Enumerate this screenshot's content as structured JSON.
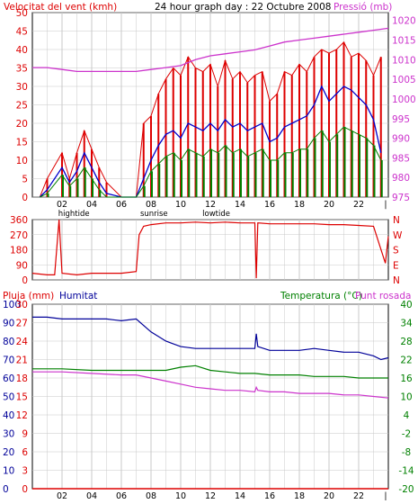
{
  "header": {
    "left_title": "Velocitat del vent (kmh)",
    "center_title": "24 hour graph day : 22 Octubre 2008",
    "right_title": "Pressió (mb)"
  },
  "x_axis": {
    "hour_ticks": [
      "02",
      "04",
      "06",
      "08",
      "10",
      "12",
      "14",
      "16",
      "18",
      "20",
      "22"
    ],
    "hightide": "hightide",
    "sunrise": "sunrise",
    "lowtide": "lowtide"
  },
  "panel3_titles": {
    "pluja": "Pluja (mm)",
    "humitat": "Humitat",
    "temperatura": "Temperatura (°C)",
    "punt_rosada": "Punt rosada"
  },
  "colors": {
    "wind_avg": "#0000cc",
    "wind_gust": "#dd0000",
    "wind_speed": "#008000",
    "pressure": "#cc33cc",
    "direction": "#dd0000",
    "humidity": "#000099",
    "temperature": "#008000",
    "dewpoint": "#cc33cc",
    "rain": "#dd0000",
    "grid": "#c8c8c8",
    "frame": "#000000"
  },
  "chart_data": [
    {
      "type": "line",
      "title": "Velocitat del vent (kmh) / Pressió (mb)",
      "x_range_hours": [
        0,
        24
      ],
      "ylim_left": [
        0,
        50
      ],
      "yticks_left": [
        "0",
        "5",
        "10",
        "15",
        "20",
        "25",
        "30",
        "35",
        "40",
        "45",
        "50"
      ],
      "ylim_right": [
        975,
        1022
      ],
      "yticks_right": [
        "975",
        "980",
        "985",
        "990",
        "995",
        "1000",
        "1005",
        "1010",
        "1015",
        "1020"
      ],
      "series": [
        {
          "role": "gust",
          "x": [
            0.5,
            1,
            2,
            2.5,
            3,
            3.5,
            4,
            4.5,
            5,
            6,
            7,
            7.5,
            8,
            8.5,
            9,
            9.5,
            10,
            10.5,
            11,
            11.5,
            12,
            12.5,
            13,
            13.5,
            14,
            14.5,
            15,
            15.5,
            16,
            16.5,
            17,
            17.5,
            18,
            18.5,
            19,
            19.5,
            20,
            20.5,
            21,
            21.5,
            22,
            22.5,
            23,
            23.5
          ],
          "y": [
            0,
            5,
            12,
            5,
            12,
            18,
            13,
            8,
            4,
            0,
            0,
            20,
            22,
            28,
            32,
            35,
            33,
            38,
            35,
            34,
            36,
            30,
            37,
            32,
            34,
            31,
            33,
            34,
            26,
            28,
            34,
            33,
            36,
            34,
            38,
            40,
            39,
            40,
            42,
            38,
            39,
            37,
            33,
            38
          ]
        },
        {
          "role": "average",
          "x": [
            0.5,
            1,
            2,
            2.5,
            3,
            3.5,
            4,
            4.5,
            5,
            6,
            7,
            7.5,
            8,
            8.5,
            9,
            9.5,
            10,
            10.5,
            11,
            11.5,
            12,
            12.5,
            13,
            13.5,
            14,
            14.5,
            15,
            15.5,
            16,
            16.5,
            17,
            17.5,
            18,
            18.5,
            19,
            19.5,
            20,
            20.5,
            21,
            21.5,
            22,
            22.5,
            23,
            23.5
          ],
          "y": [
            0,
            2,
            8,
            4,
            7,
            12,
            8,
            4,
            1,
            0,
            0,
            5,
            10,
            14,
            17,
            18,
            16,
            20,
            19,
            18,
            20,
            18,
            21,
            19,
            20,
            18,
            19,
            20,
            15,
            16,
            19,
            20,
            21,
            22,
            25,
            30,
            26,
            28,
            30,
            29,
            27,
            25,
            21,
            12
          ]
        },
        {
          "role": "speed",
          "x": [
            0.5,
            1,
            2,
            2.5,
            3,
            3.5,
            4,
            4.5,
            5,
            6,
            7,
            7.5,
            8,
            8.5,
            9,
            9.5,
            10,
            10.5,
            11,
            11.5,
            12,
            12.5,
            13,
            13.5,
            14,
            14.5,
            15,
            15.5,
            16,
            16.5,
            17,
            17.5,
            18,
            18.5,
            19,
            19.5,
            20,
            20.5,
            21,
            21.5,
            22,
            22.5,
            23,
            23.5
          ],
          "y": [
            0,
            1,
            6,
            3,
            5,
            8,
            5,
            2,
            0,
            0,
            0,
            3,
            7,
            9,
            11,
            12,
            10,
            13,
            12,
            11,
            13,
            12,
            14,
            12,
            13,
            11,
            12,
            13,
            10,
            10,
            12,
            12,
            13,
            13,
            16,
            18,
            15,
            17,
            19,
            18,
            17,
            16,
            14,
            10
          ]
        },
        {
          "role": "pressure",
          "x": [
            0,
            1,
            2,
            3,
            4,
            5,
            6,
            7,
            8,
            9,
            10,
            11,
            12,
            13,
            14,
            15,
            16,
            17,
            18,
            19,
            20,
            21,
            22,
            23,
            24
          ],
          "y": [
            1008,
            1008,
            1007.5,
            1007,
            1007,
            1007,
            1007,
            1007,
            1007.5,
            1008,
            1008.5,
            1010,
            1011,
            1011.5,
            1012,
            1012.5,
            1013.5,
            1014.5,
            1015,
            1015.5,
            1016,
            1016.5,
            1017,
            1017.5,
            1018
          ]
        }
      ]
    },
    {
      "type": "line",
      "title": "Direcció del vent",
      "x_range_hours": [
        0,
        24
      ],
      "ylim": [
        0,
        360
      ],
      "yticks": [
        "0",
        "90",
        "180",
        "270",
        "360"
      ],
      "right_labels": [
        "N",
        "W",
        "S",
        "E",
        "N"
      ],
      "series": [
        {
          "role": "direction",
          "x": [
            0,
            1,
            1.5,
            1.8,
            2,
            3,
            4,
            5,
            6,
            7,
            7.2,
            7.5,
            8,
            9,
            10,
            11,
            12,
            13,
            14,
            15,
            15.1,
            15.2,
            16,
            17,
            18,
            19,
            20,
            21,
            22,
            23,
            23.8,
            24
          ],
          "y": [
            40,
            30,
            30,
            360,
            40,
            30,
            40,
            40,
            40,
            50,
            270,
            320,
            330,
            340,
            340,
            345,
            340,
            345,
            340,
            340,
            10,
            340,
            335,
            335,
            335,
            335,
            330,
            330,
            325,
            320,
            100,
            260
          ]
        }
      ]
    },
    {
      "type": "line",
      "title": "Pluja (mm) / Humitat / Temperatura (°C) / Punt rosada",
      "x_range_hours": [
        0,
        24
      ],
      "ylim_left_rain": [
        0,
        30
      ],
      "yticks_left_rain": [
        "0",
        "3",
        "6",
        "9",
        "12",
        "15",
        "18",
        "21",
        "24",
        "27",
        "30"
      ],
      "ylim_left_humidity": [
        0,
        100
      ],
      "yticks_left_humidity": [
        "0",
        "10",
        "20",
        "30",
        "40",
        "50",
        "60",
        "70",
        "80",
        "90",
        "100"
      ],
      "ylim_right_temp": [
        -20,
        40
      ],
      "yticks_right_temp": [
        "-20",
        "-14",
        "-8",
        "-2",
        "4",
        "10",
        "16",
        "22",
        "28",
        "34",
        "40"
      ],
      "series": [
        {
          "role": "humidity",
          "x": [
            0,
            1,
            2,
            3,
            4,
            5,
            6,
            7,
            8,
            9,
            10,
            11,
            12,
            13,
            14,
            15,
            15.1,
            15.2,
            16,
            17,
            18,
            19,
            20,
            21,
            22,
            23,
            23.5,
            24
          ],
          "y": [
            93,
            93,
            92,
            92,
            92,
            92,
            91,
            92,
            85,
            80,
            77,
            76,
            76,
            76,
            76,
            76,
            84,
            77,
            75,
            75,
            75,
            76,
            75,
            74,
            74,
            72,
            70,
            71
          ]
        },
        {
          "role": "temperature",
          "x": [
            0,
            2,
            4,
            6,
            7,
            8,
            9,
            10,
            11,
            12,
            13,
            14,
            15,
            16,
            17,
            18,
            19,
            20,
            21,
            22,
            23,
            24
          ],
          "y": [
            19,
            19,
            18.5,
            18.5,
            18.5,
            18.5,
            18.5,
            19.5,
            20,
            18.5,
            18,
            17.5,
            17.5,
            17,
            17,
            17,
            16.5,
            16.5,
            16.5,
            16,
            16,
            16
          ]
        },
        {
          "role": "dewpoint",
          "x": [
            0,
            2,
            4,
            6,
            7,
            8,
            9,
            10,
            11,
            12,
            13,
            14,
            15,
            15.1,
            15.2,
            16,
            17,
            18,
            19,
            20,
            21,
            22,
            23,
            24
          ],
          "y": [
            18,
            18,
            17.5,
            17,
            17,
            16,
            15,
            14,
            13,
            12.5,
            12,
            12,
            11.5,
            13,
            12,
            11.5,
            11.5,
            11,
            11,
            11,
            10.5,
            10.5,
            10,
            9.5
          ]
        },
        {
          "role": "rain",
          "x": [
            0,
            24
          ],
          "y": [
            0,
            0
          ]
        }
      ]
    }
  ]
}
